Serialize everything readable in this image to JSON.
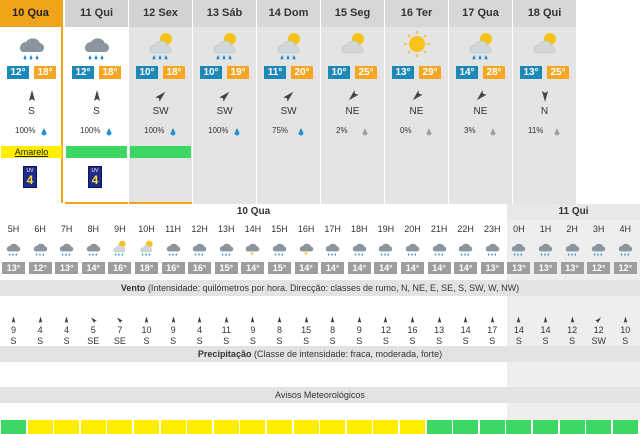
{
  "colors": {
    "accent": "#f0a419",
    "tmin": "#1c88b8",
    "tmax": "#f5a623",
    "warn_yellow": "#ffee00",
    "warn_green": "#3ed763"
  },
  "days": [
    {
      "label": "10 Qua",
      "icon": "rain-cloud-icon",
      "tmin": "12°",
      "tmax": "18°",
      "dir": "S",
      "rot": 0,
      "prob": "100%",
      "warning": "Amarelo",
      "uv": "4"
    },
    {
      "label": "11 Qui",
      "icon": "rain-cloud-icon",
      "tmin": "12°",
      "tmax": "18°",
      "dir": "S",
      "rot": 0,
      "prob": "100%",
      "warning": "",
      "uv": "4"
    },
    {
      "label": "12 Sex",
      "icon": "sun-cloud-rain-icon",
      "tmin": "10°",
      "tmax": "18°",
      "dir": "SW",
      "rot": 45,
      "prob": "100%",
      "warning": "",
      "uv": ""
    },
    {
      "label": "13 Sáb",
      "icon": "sun-cloud-rain-icon",
      "tmin": "10°",
      "tmax": "19°",
      "dir": "SW",
      "rot": 45,
      "prob": "100%",
      "warning": "",
      "uv": ""
    },
    {
      "label": "14 Dom",
      "icon": "sun-cloud-rain-icon",
      "tmin": "11°",
      "tmax": "20°",
      "dir": "SW",
      "rot": 45,
      "prob": "75%",
      "warning": "",
      "uv": ""
    },
    {
      "label": "15 Seg",
      "icon": "sun-cloud-icon",
      "tmin": "10°",
      "tmax": "25°",
      "dir": "NE",
      "rot": 225,
      "prob": "2%",
      "warning": "",
      "uv": ""
    },
    {
      "label": "16 Ter",
      "icon": "sun-icon",
      "tmin": "13°",
      "tmax": "29°",
      "dir": "NE",
      "rot": 225,
      "prob": "0%",
      "warning": "",
      "uv": ""
    },
    {
      "label": "17 Qua",
      "icon": "sun-cloud-rain-icon",
      "tmin": "14°",
      "tmax": "28°",
      "dir": "NE",
      "rot": 225,
      "prob": "3%",
      "warning": "",
      "uv": ""
    },
    {
      "label": "18 Qui",
      "icon": "sun-cloud-icon",
      "tmin": "13°",
      "tmax": "25°",
      "dir": "N",
      "rot": 180,
      "prob": "11%",
      "warning": "",
      "uv": ""
    }
  ],
  "date_today": "10 Qua",
  "date_next": "11 Qui",
  "wind_title_bold": "Vento",
  "wind_title": "(Intensidade: quilómetros por hora. Direcção: classes de rumo, N, NE, E, SE, S, SW, W, NW)",
  "precip_title_bold": "Precipitação",
  "precip_title": "(Classe de intensidade: fraca, moderada, forte)",
  "warn_title": "Avisos Meteorológicos",
  "hours": [
    {
      "h": "5H",
      "icon": "rain-cloud-icon",
      "t": "13°",
      "w": "9",
      "d": "S",
      "rot": 0,
      "warn": "green"
    },
    {
      "h": "6H",
      "icon": "rain-cloud-icon",
      "t": "12°",
      "w": "4",
      "d": "S",
      "rot": 0,
      "warn": "yellow"
    },
    {
      "h": "7H",
      "icon": "rain-cloud-icon",
      "t": "13°",
      "w": "4",
      "d": "S",
      "rot": 0,
      "warn": "yellow"
    },
    {
      "h": "8H",
      "icon": "rain-cloud-icon",
      "t": "14°",
      "w": "5",
      "d": "SE",
      "rot": 315,
      "warn": "yellow"
    },
    {
      "h": "9H",
      "icon": "sun-cloud-rain-icon",
      "t": "16°",
      "w": "7",
      "d": "SE",
      "rot": 315,
      "warn": "yellow"
    },
    {
      "h": "10H",
      "icon": "sun-cloud-rain-icon",
      "t": "18°",
      "w": "10",
      "d": "S",
      "rot": 0,
      "warn": "yellow"
    },
    {
      "h": "11H",
      "icon": "rain-cloud-icon",
      "t": "16°",
      "w": "9",
      "d": "S",
      "rot": 0,
      "warn": "yellow"
    },
    {
      "h": "12H",
      "icon": "rain-cloud-icon",
      "t": "16°",
      "w": "4",
      "d": "S",
      "rot": 0,
      "warn": "yellow"
    },
    {
      "h": "13H",
      "icon": "rain-cloud-icon",
      "t": "15°",
      "w": "11",
      "d": "S",
      "rot": 0,
      "warn": "yellow"
    },
    {
      "h": "14H",
      "icon": "thunder-cloud-icon",
      "t": "14°",
      "w": "9",
      "d": "S",
      "rot": 0,
      "warn": "yellow"
    },
    {
      "h": "15H",
      "icon": "rain-cloud-icon",
      "t": "15°",
      "w": "8",
      "d": "S",
      "rot": 0,
      "warn": "yellow"
    },
    {
      "h": "16H",
      "icon": "thunder-cloud-icon",
      "t": "14°",
      "w": "15",
      "d": "S",
      "rot": 0,
      "warn": "yellow"
    },
    {
      "h": "17H",
      "icon": "rain-cloud-icon",
      "t": "14°",
      "w": "8",
      "d": "S",
      "rot": 0,
      "warn": "yellow"
    },
    {
      "h": "18H",
      "icon": "rain-cloud-icon",
      "t": "14°",
      "w": "9",
      "d": "S",
      "rot": 0,
      "warn": "yellow"
    },
    {
      "h": "19H",
      "icon": "rain-cloud-icon",
      "t": "14°",
      "w": "12",
      "d": "S",
      "rot": 0,
      "warn": "yellow"
    },
    {
      "h": "20H",
      "icon": "rain-cloud-icon",
      "t": "14°",
      "w": "16",
      "d": "S",
      "rot": 0,
      "warn": "yellow"
    },
    {
      "h": "21H",
      "icon": "rain-cloud-icon",
      "t": "14°",
      "w": "13",
      "d": "S",
      "rot": 0,
      "warn": "green"
    },
    {
      "h": "22H",
      "icon": "rain-cloud-icon",
      "t": "14°",
      "w": "14",
      "d": "S",
      "rot": 0,
      "warn": "green"
    },
    {
      "h": "23H",
      "icon": "rain-cloud-icon",
      "t": "13°",
      "w": "17",
      "d": "S",
      "rot": 0,
      "warn": "green"
    },
    {
      "h": "0H",
      "icon": "rain-cloud-icon",
      "t": "13°",
      "w": "14",
      "d": "S",
      "rot": 0,
      "warn": "green"
    },
    {
      "h": "1H",
      "icon": "rain-cloud-icon",
      "t": "13°",
      "w": "14",
      "d": "S",
      "rot": 0,
      "warn": "green"
    },
    {
      "h": "2H",
      "icon": "rain-cloud-icon",
      "t": "13°",
      "w": "12",
      "d": "S",
      "rot": 0,
      "warn": "green"
    },
    {
      "h": "3H",
      "icon": "rain-cloud-icon",
      "t": "12°",
      "w": "12",
      "d": "SW",
      "rot": 45,
      "warn": "green"
    },
    {
      "h": "4H",
      "icon": "rain-cloud-icon",
      "t": "12°",
      "w": "10",
      "d": "S",
      "rot": 0,
      "warn": "green"
    }
  ]
}
